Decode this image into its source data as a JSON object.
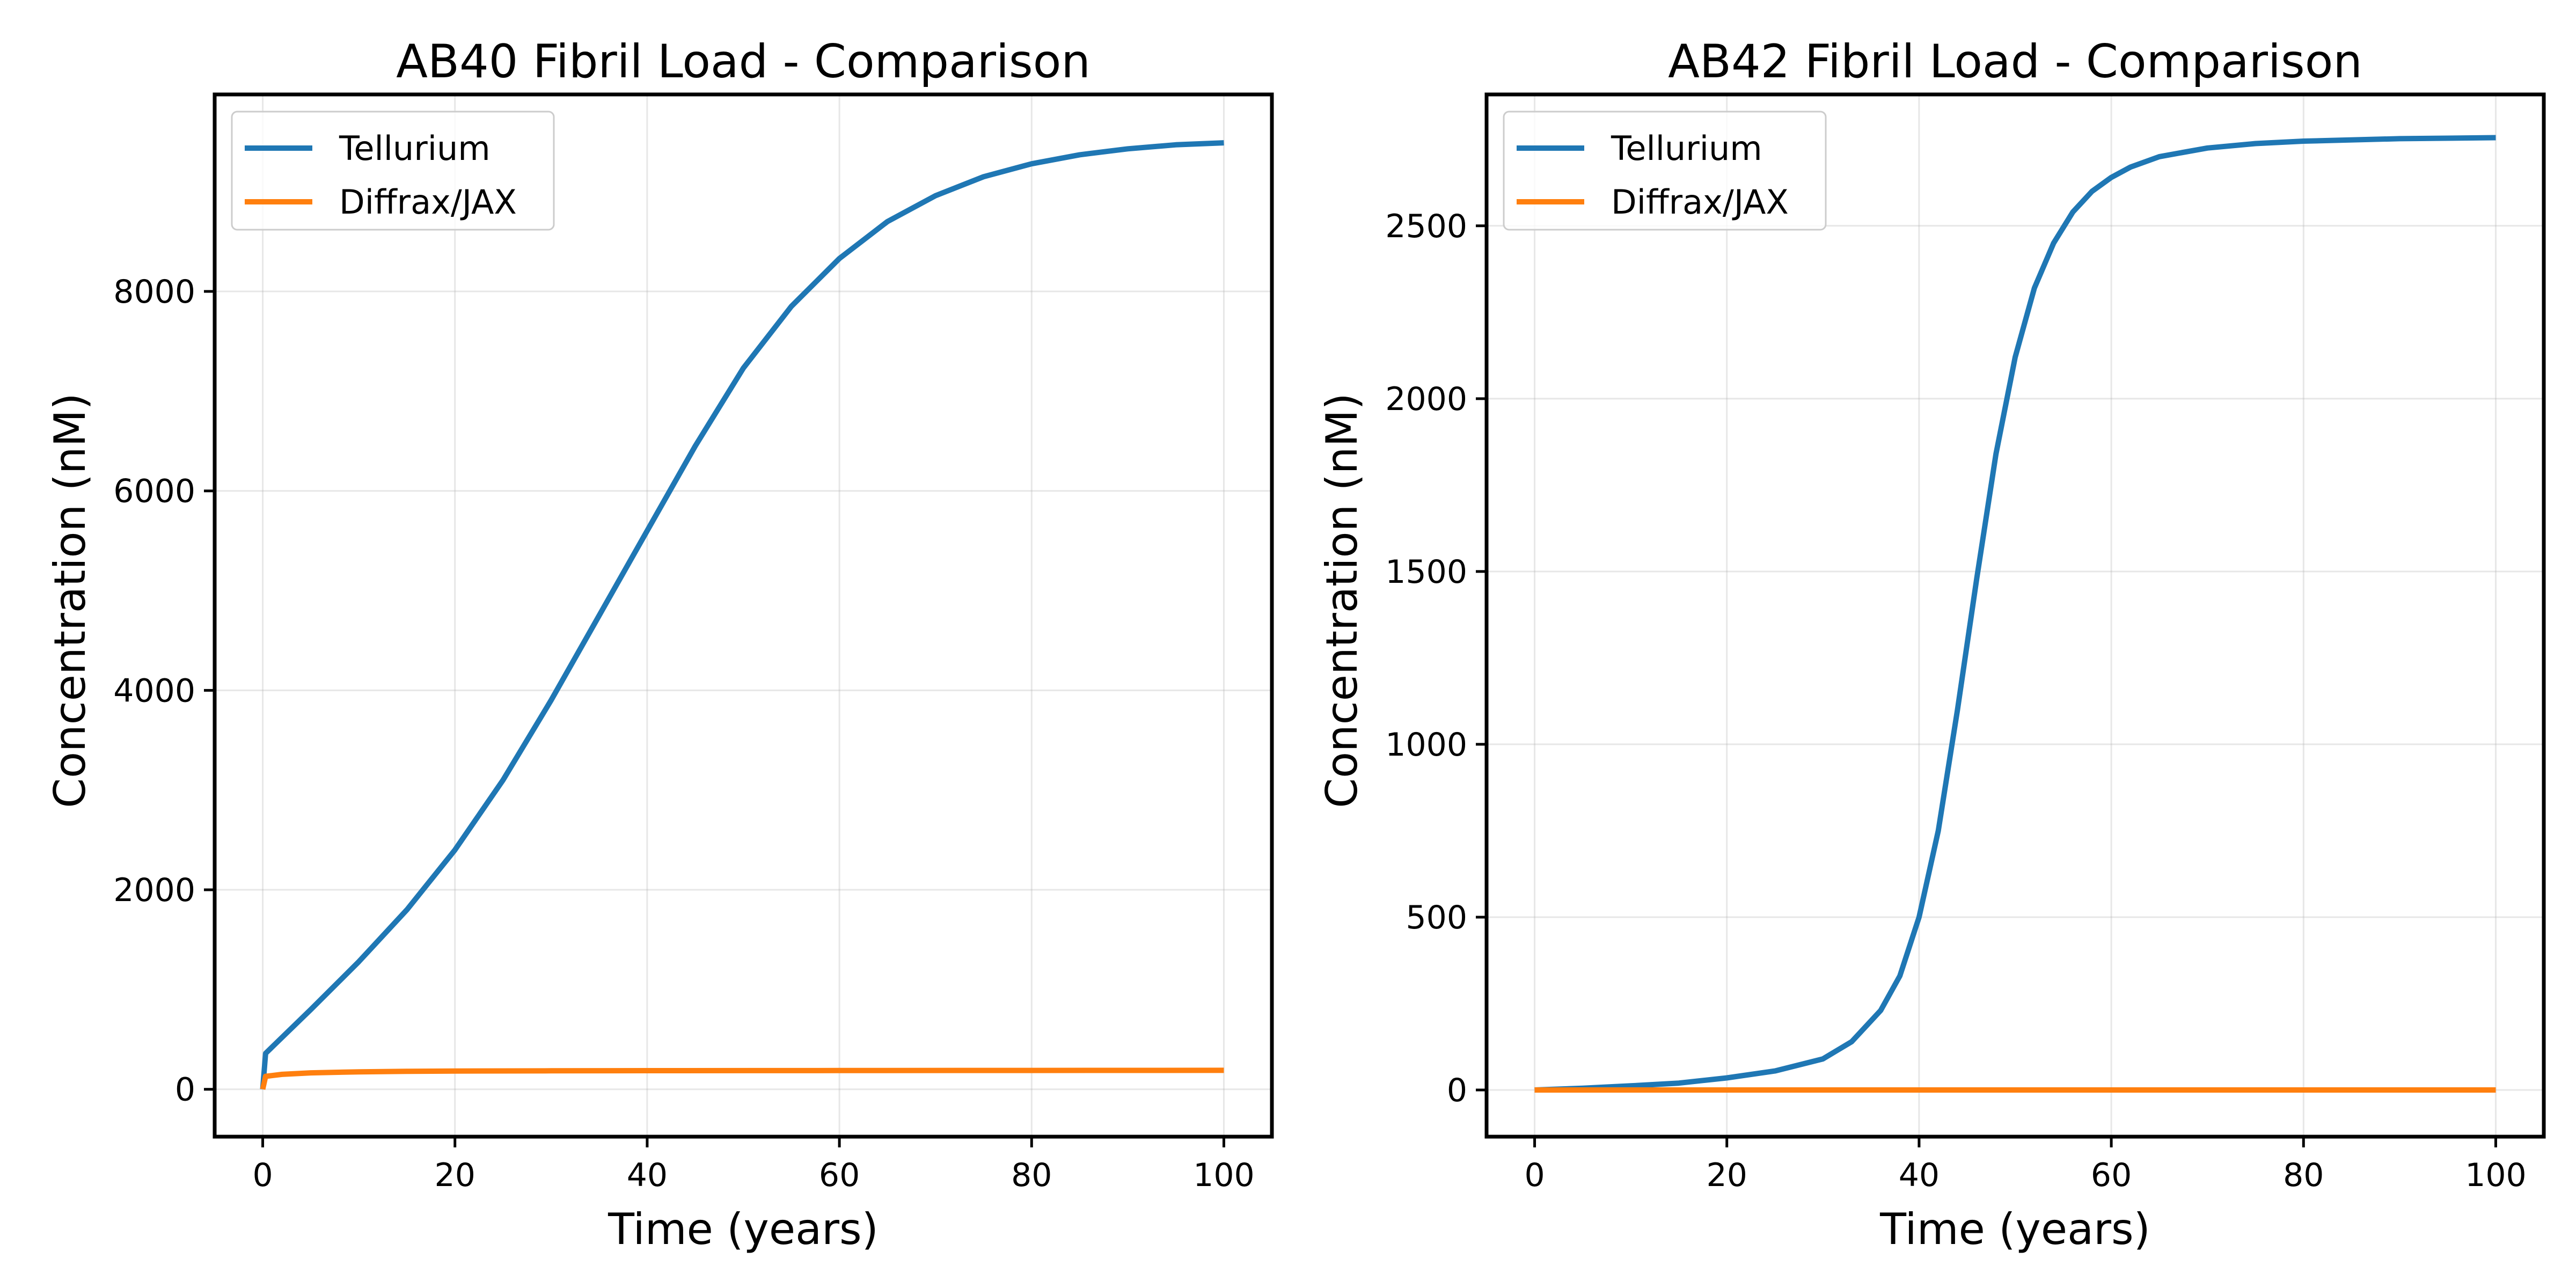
{
  "chart_data": [
    {
      "type": "line",
      "title": "AB40 Fibril Load - Comparison",
      "xlabel": "Time (years)",
      "ylabel": "Concentration (nM)",
      "xlim": [
        -5,
        105
      ],
      "ylim": [
        -475,
        9975
      ],
      "xticks": [
        0,
        20,
        40,
        60,
        80,
        100
      ],
      "yticks": [
        0,
        2000,
        4000,
        6000,
        8000
      ],
      "grid": true,
      "legend_position": "upper-left",
      "series": [
        {
          "name": "Tellurium",
          "color": "#1f77b4",
          "x": [
            0,
            0.3,
            5,
            10,
            15,
            20,
            25,
            30,
            35,
            40,
            45,
            50,
            55,
            60,
            65,
            70,
            75,
            80,
            85,
            90,
            95,
            100
          ],
          "y": [
            0,
            360,
            800,
            1280,
            1800,
            2400,
            3100,
            3900,
            4750,
            5600,
            6450,
            7230,
            7850,
            8330,
            8700,
            8960,
            9150,
            9280,
            9370,
            9430,
            9470,
            9490
          ]
        },
        {
          "name": "Diffrax/JAX",
          "color": "#ff7f0e",
          "x": [
            0,
            0.3,
            2,
            5,
            10,
            15,
            20,
            30,
            40,
            60,
            80,
            100
          ],
          "y": [
            0,
            130,
            150,
            165,
            175,
            180,
            183,
            185,
            187,
            188,
            189,
            190
          ]
        }
      ]
    },
    {
      "type": "line",
      "title": "AB42 Fibril Load - Comparison",
      "xlabel": "Time (years)",
      "ylabel": "Concentration (nM)",
      "xlim": [
        -5,
        105
      ],
      "ylim": [
        -135,
        2880
      ],
      "xticks": [
        0,
        20,
        40,
        60,
        80,
        100
      ],
      "yticks": [
        0,
        500,
        1000,
        1500,
        2000,
        2500
      ],
      "grid": true,
      "legend_position": "upper-left",
      "series": [
        {
          "name": "Tellurium",
          "color": "#1f77b4",
          "x": [
            0,
            5,
            10,
            15,
            20,
            25,
            30,
            33,
            36,
            38,
            40,
            42,
            44,
            46,
            48,
            50,
            52,
            54,
            56,
            58,
            60,
            62,
            65,
            70,
            75,
            80,
            90,
            100
          ],
          "y": [
            0,
            5,
            12,
            20,
            35,
            55,
            90,
            140,
            230,
            330,
            500,
            750,
            1100,
            1480,
            1840,
            2120,
            2320,
            2450,
            2540,
            2600,
            2640,
            2670,
            2700,
            2725,
            2738,
            2745,
            2752,
            2755
          ]
        },
        {
          "name": "Diffrax/JAX",
          "color": "#ff7f0e",
          "x": [
            0,
            20,
            40,
            60,
            80,
            100
          ],
          "y": [
            0,
            0,
            0,
            0,
            0,
            0
          ]
        }
      ]
    }
  ]
}
